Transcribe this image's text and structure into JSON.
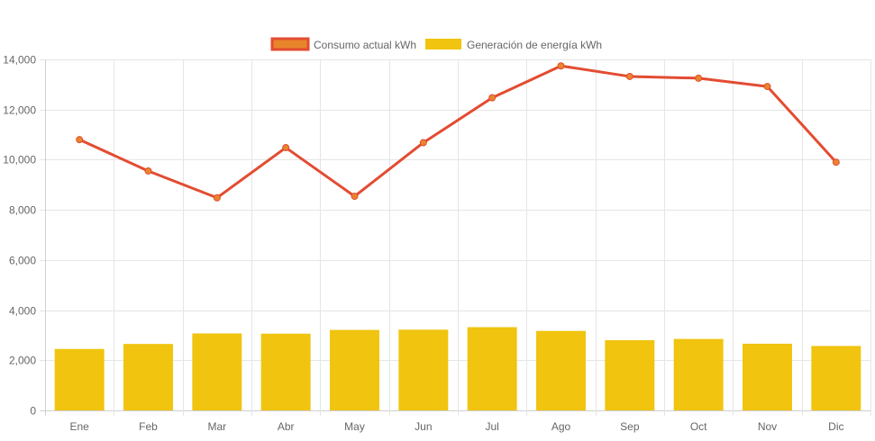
{
  "chart_data": {
    "type": "bar",
    "categories": [
      "Ene",
      "Feb",
      "Mar",
      "Abr",
      "May",
      "Jun",
      "Jul",
      "Ago",
      "Sep",
      "Oct",
      "Nov",
      "Dic"
    ],
    "series": [
      {
        "name": "Consumo actual kWh",
        "type": "line",
        "values": [
          10800,
          9550,
          8480,
          10480,
          8540,
          10680,
          12470,
          13740,
          13320,
          13250,
          12920,
          9900
        ],
        "color": "#e34c32",
        "point_color": "#e8852b"
      },
      {
        "name": "Generación de energía kWh",
        "type": "bar",
        "values": [
          2450,
          2650,
          3070,
          3060,
          3210,
          3220,
          3320,
          3170,
          2800,
          2850,
          2660,
          2570
        ],
        "color": "#f0c40f"
      }
    ],
    "ylim": [
      0,
      14000
    ],
    "yticks": [
      0,
      2000,
      4000,
      6000,
      8000,
      10000,
      12000,
      14000
    ],
    "ytick_labels": [
      "0",
      "2,000",
      "4,000",
      "6,000",
      "8,000",
      "10,000",
      "12,000",
      "14,000"
    ],
    "grid": true,
    "legend_position": "top-center",
    "title": "",
    "xlabel": "",
    "ylabel": ""
  }
}
